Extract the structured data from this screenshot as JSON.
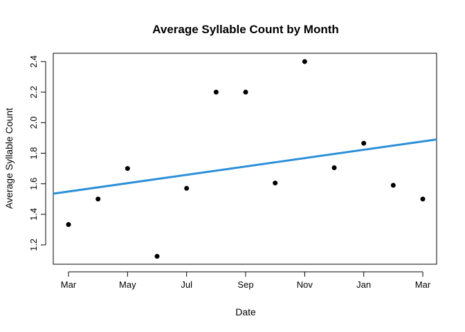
{
  "chart_data": {
    "type": "scatter",
    "title": "Average Syllable Count by Month",
    "xlabel": "Date",
    "ylabel": "Average Syllable Count",
    "x_ticks": [
      "Mar",
      "May",
      "Jul",
      "Sep",
      "Nov",
      "Jan",
      "Mar"
    ],
    "y_ticks": [
      "1.2",
      "1.4",
      "1.6",
      "1.8",
      "2.0",
      "2.2",
      "2.4"
    ],
    "ylim": [
      1.1,
      2.45
    ],
    "grid": false,
    "legend": "none",
    "points": [
      {
        "x": "Mar",
        "y": 1.333
      },
      {
        "x": "Apr",
        "y": 1.5
      },
      {
        "x": "May",
        "y": 1.7
      },
      {
        "x": "Jun",
        "y": 1.125
      },
      {
        "x": "Jul",
        "y": 1.57
      },
      {
        "x": "Aug",
        "y": 2.2
      },
      {
        "x": "Sep",
        "y": 2.2
      },
      {
        "x": "Oct",
        "y": 1.605
      },
      {
        "x": "Nov",
        "y": 2.4
      },
      {
        "x": "Dec",
        "y": 1.705
      },
      {
        "x": "Jan",
        "y": 1.865
      },
      {
        "x": "Feb",
        "y": 1.59
      },
      {
        "x": "Mar",
        "y": 1.5
      }
    ],
    "trend_line": {
      "start_y": 1.535,
      "end_y": 1.89
    },
    "colors": {
      "points": "#000000",
      "trend": "#2b8fd8",
      "axes": "#000000"
    }
  }
}
